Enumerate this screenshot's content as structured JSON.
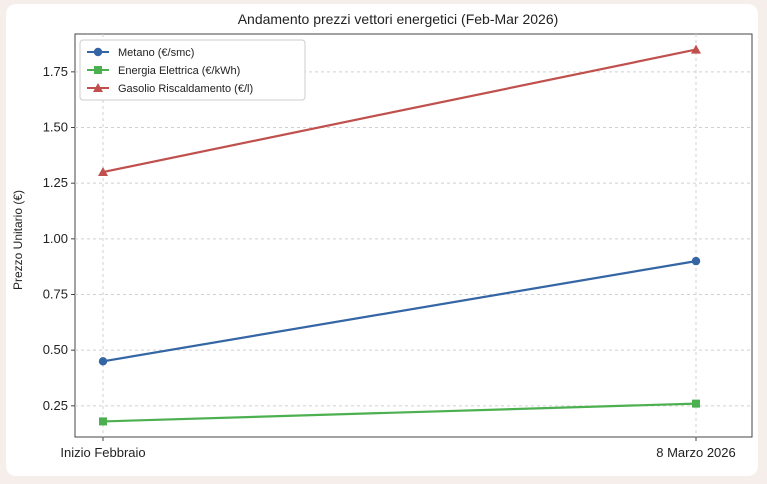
{
  "chart_data": {
    "type": "line",
    "title": "Andamento prezzi vettori energetici (Feb-Mar 2026)",
    "xlabel": "",
    "ylabel": "Prezzo Unitario (€)",
    "categories": [
      "Inizio Febbraio",
      "8 Marzo 2026"
    ],
    "ylim": [
      0.11,
      1.92
    ],
    "yticks": [
      "0.25",
      "0.50",
      "0.75",
      "1.00",
      "1.25",
      "1.50",
      "1.75"
    ],
    "grid": true,
    "legend_position": "top-left",
    "series": [
      {
        "name": "Metano (€/smc)",
        "values": [
          0.45,
          0.9
        ],
        "color": "#3465a4",
        "marker": "circle"
      },
      {
        "name": "Energia Elettrica (€/kWh)",
        "values": [
          0.18,
          0.26
        ],
        "color": "#4cb050",
        "marker": "square"
      },
      {
        "name": "Gasolio Riscaldamento (€/l)",
        "values": [
          1.3,
          1.85
        ],
        "color": "#c0504d",
        "marker": "triangle"
      }
    ]
  }
}
